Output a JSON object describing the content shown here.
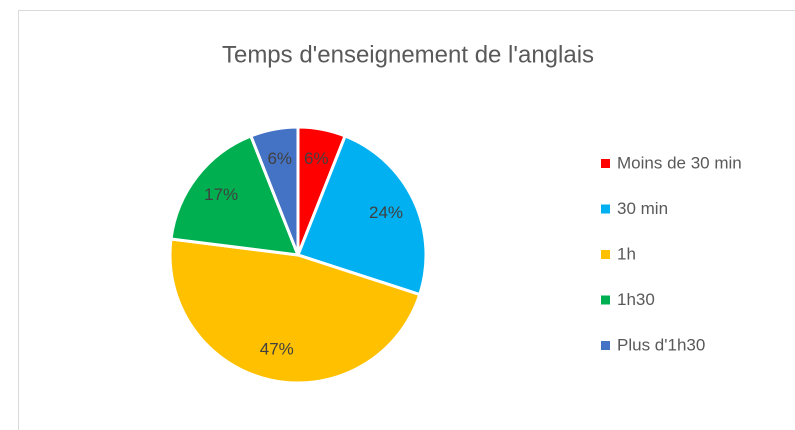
{
  "chart_data": {
    "type": "pie",
    "title": "Temps d'enseignement de l'anglais",
    "categories": [
      "Moins de 30 min",
      "30 min",
      "1h",
      "1h30",
      "Plus d'1h30"
    ],
    "values": [
      6,
      24,
      47,
      17,
      6
    ],
    "value_labels": [
      "6%",
      "24%",
      "47%",
      "17%",
      "6%"
    ],
    "colors": [
      "#ff0000",
      "#00b0f0",
      "#ffc000",
      "#00b050",
      "#4472c4"
    ],
    "legend": "right"
  }
}
